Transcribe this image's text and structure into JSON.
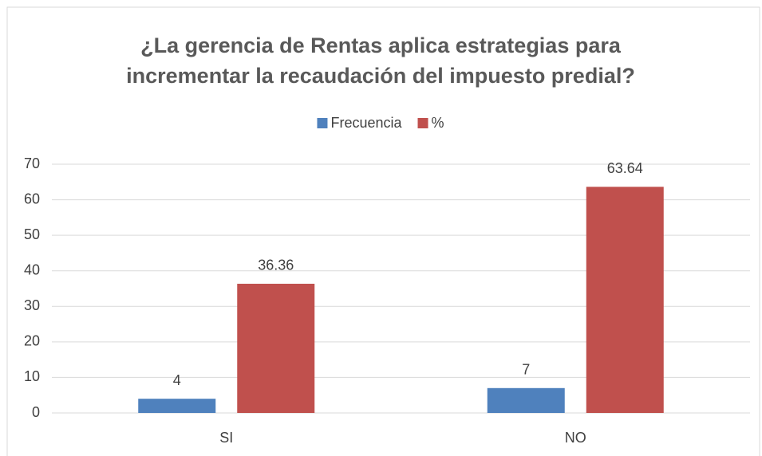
{
  "chart_data": {
    "type": "bar",
    "title": "¿La gerencia de Rentas aplica estrategias para incrementar la recaudación del impuesto predial?",
    "categories": [
      "SI",
      "NO"
    ],
    "series": [
      {
        "name": "Frecuencia",
        "color": "#4f81bd",
        "values": [
          4,
          7
        ]
      },
      {
        "name": "%",
        "color": "#c0504d",
        "values": [
          36.36,
          63.64
        ]
      }
    ],
    "ylim": [
      0,
      70
    ],
    "yticks": [
      0,
      10,
      20,
      30,
      40,
      50,
      60,
      70
    ],
    "grid": true,
    "legend": "top"
  }
}
